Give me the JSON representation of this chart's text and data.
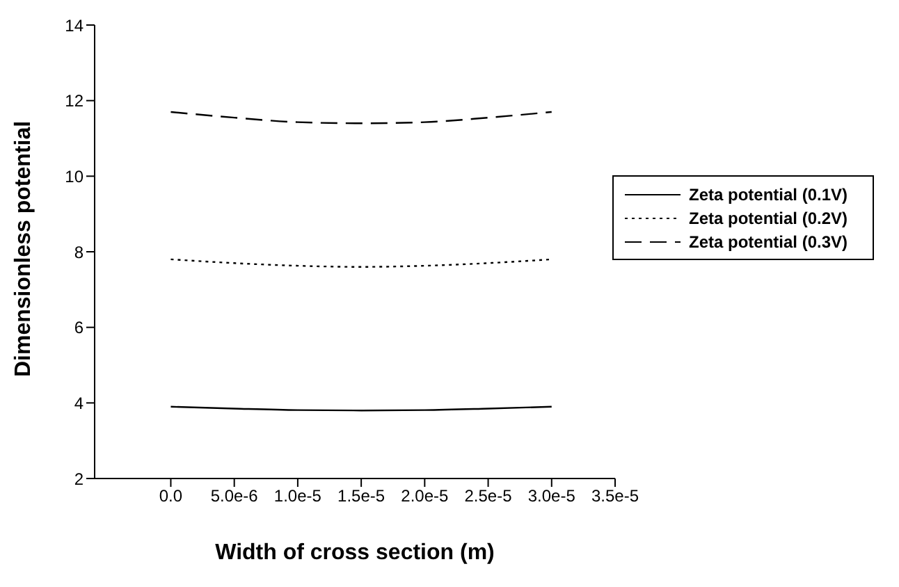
{
  "chart_data": {
    "type": "line",
    "xlabel": "Width of cross section (m)",
    "ylabel": "Dimensionless potential",
    "x": [
      0,
      5e-06,
      1e-05,
      1.5e-05,
      2e-05,
      2.5e-05,
      3e-05
    ],
    "series": [
      {
        "name": "Zeta potential (0.1V)",
        "color": "#000000",
        "line_style": "solid",
        "values": [
          3.9,
          3.85,
          3.81,
          3.8,
          3.81,
          3.85,
          3.9
        ]
      },
      {
        "name": "Zeta potential (0.2V)",
        "color": "#000000",
        "line_style": "dotted",
        "values": [
          7.8,
          7.7,
          7.63,
          7.6,
          7.63,
          7.7,
          7.8
        ]
      },
      {
        "name": "Zeta potential (0.3V)",
        "color": "#000000",
        "line_style": "dashed",
        "values": [
          11.7,
          11.55,
          11.43,
          11.4,
          11.43,
          11.55,
          11.7
        ]
      }
    ],
    "xlim": [
      -6e-06,
      3.5e-05
    ],
    "xticks": [
      {
        "value": 0,
        "label": "0.0"
      },
      {
        "value": 5e-06,
        "label": "5.0e-6"
      },
      {
        "value": 1e-05,
        "label": "1.0e-5"
      },
      {
        "value": 1.5e-05,
        "label": "1.5e-5"
      },
      {
        "value": 2e-05,
        "label": "2.0e-5"
      },
      {
        "value": 2.5e-05,
        "label": "2.5e-5"
      },
      {
        "value": 3e-05,
        "label": "3.0e-5"
      },
      {
        "value": 3.5e-05,
        "label": "3.5e-5"
      }
    ],
    "ylim": [
      2,
      14
    ],
    "yticks": [
      2,
      4,
      6,
      8,
      10,
      12,
      14
    ],
    "grid": false,
    "legend": "top right",
    "marker": "none"
  }
}
